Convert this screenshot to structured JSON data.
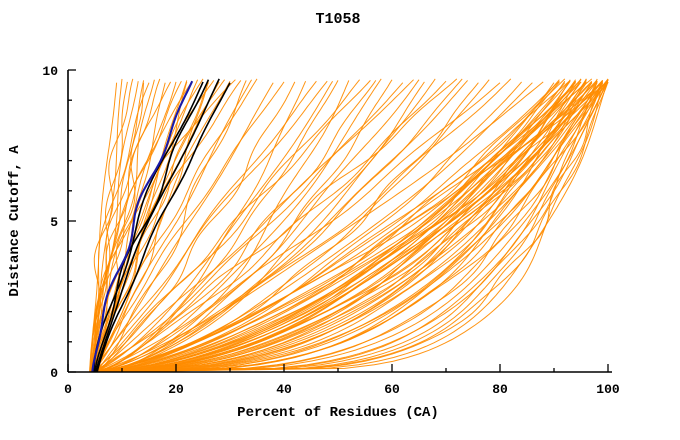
{
  "title": "T1058",
  "chart_data": {
    "type": "line",
    "title": "T1058",
    "xlabel": "Percent of Residues (CA)",
    "ylabel": "Distance Cutoff, A",
    "xlim": [
      0,
      100
    ],
    "ylim": [
      0,
      10
    ],
    "x_ticks": [
      0,
      20,
      40,
      60,
      80,
      100
    ],
    "y_ticks": [
      0,
      5,
      10
    ],
    "x_minor_step": 10,
    "y_minor_step": 1,
    "grid": false,
    "legend": "none",
    "curve_model": "x(y) = x0 + (x1 - x0) * (y/ymax)^p, y from 0 to ~9.65",
    "colors": {
      "predictions": "#ff8c00",
      "highlight_black": "#000000",
      "highlight_blue": "#1a1aa8"
    },
    "series": [
      {
        "name": "prediction-curves",
        "color": "#ff8c00",
        "stroke_width": 1,
        "params": [
          [
            4,
            9,
            1.2
          ],
          [
            4.5,
            11,
            1.1
          ],
          [
            5,
            13,
            1.3
          ],
          [
            4,
            14,
            1.0
          ],
          [
            5.5,
            16,
            1.2
          ],
          [
            4.2,
            17,
            1.4
          ],
          [
            5,
            18,
            0.9
          ],
          [
            4.8,
            20,
            1.1
          ],
          [
            4.3,
            21,
            1.5
          ],
          [
            5.2,
            22,
            1.0
          ],
          [
            4.6,
            24,
            1.2
          ],
          [
            5,
            25,
            1.6
          ],
          [
            4.4,
            26,
            1.0
          ],
          [
            5.5,
            28,
            1.3
          ],
          [
            4.1,
            30,
            1.1
          ],
          [
            5,
            32,
            1.4
          ],
          [
            4.7,
            34,
            1.0
          ],
          [
            4.9,
            12,
            2.0
          ],
          [
            4.2,
            15,
            1.8
          ],
          [
            5.1,
            19,
            2.2
          ],
          [
            4.4,
            23,
            1.9
          ],
          [
            5.3,
            27,
            1.7
          ],
          [
            4.6,
            31,
            2.1
          ],
          [
            4.2,
            10,
            0.8
          ],
          [
            5.2,
            14,
            0.7
          ],
          [
            4.8,
            22,
            0.8
          ],
          [
            4.3,
            26,
            0.75
          ],
          [
            5.6,
            33,
            0.85
          ],
          [
            4.5,
            29,
            1.5
          ],
          [
            5.4,
            35,
            1.2
          ],
          [
            4,
            38,
            0.9
          ],
          [
            5,
            42,
            0.8
          ],
          [
            4.5,
            46,
            1.0
          ],
          [
            5.5,
            50,
            0.7
          ],
          [
            4.2,
            54,
            0.9
          ],
          [
            5.1,
            58,
            0.65
          ],
          [
            4.7,
            62,
            0.85
          ],
          [
            5.3,
            66,
            0.6
          ],
          [
            4.4,
            70,
            0.8
          ],
          [
            5,
            74,
            0.7
          ],
          [
            4.8,
            78,
            0.6
          ],
          [
            5.2,
            82,
            0.75
          ],
          [
            4.3,
            86,
            0.65
          ],
          [
            4.6,
            40,
            1.1
          ],
          [
            5.4,
            48,
            1.05
          ],
          [
            4.9,
            56,
            1.0
          ],
          [
            5.0,
            64,
            0.95
          ],
          [
            4.5,
            72,
            0.9
          ],
          [
            5.2,
            80,
            0.85
          ],
          [
            4.7,
            88,
            0.8
          ],
          [
            4.2,
            44,
            0.6
          ],
          [
            5.5,
            52,
            0.55
          ],
          [
            4.8,
            60,
            0.58
          ],
          [
            5.1,
            68,
            0.62
          ],
          [
            4.4,
            76,
            0.57
          ],
          [
            5.3,
            84,
            0.6
          ],
          [
            4.6,
            49,
            0.75
          ],
          [
            5.0,
            57,
            0.72
          ],
          [
            4.9,
            65,
            0.68
          ],
          [
            5.2,
            73,
            0.66
          ],
          [
            4,
            90,
            0.45
          ],
          [
            4.5,
            91,
            0.5
          ],
          [
            5,
            92,
            0.42
          ],
          [
            5.5,
            93,
            0.55
          ],
          [
            4.2,
            94,
            0.4
          ],
          [
            4.8,
            95,
            0.5
          ],
          [
            5.2,
            96,
            0.38
          ],
          [
            4.4,
            97,
            0.52
          ],
          [
            5,
            98,
            0.44
          ],
          [
            4.6,
            99,
            0.5
          ],
          [
            5.4,
            100,
            0.4
          ],
          [
            4.1,
            92,
            0.6
          ],
          [
            4.9,
            94,
            0.58
          ],
          [
            5.3,
            96,
            0.62
          ],
          [
            4.5,
            98,
            0.56
          ],
          [
            5.1,
            100,
            0.6
          ],
          [
            4.3,
            93,
            0.35
          ],
          [
            5.5,
            95,
            0.33
          ],
          [
            4.7,
            97,
            0.36
          ],
          [
            5.2,
            99,
            0.34
          ],
          [
            4.2,
            91,
            0.65
          ],
          [
            4.8,
            93,
            0.68
          ],
          [
            5.4,
            95,
            0.64
          ],
          [
            4.4,
            97,
            0.7
          ],
          [
            5,
            99,
            0.66
          ],
          [
            4.6,
            100,
            0.72
          ],
          [
            4.3,
            94,
            0.48
          ],
          [
            5.2,
            96,
            0.46
          ],
          [
            4.8,
            98,
            0.5
          ],
          [
            4.5,
            100,
            0.47
          ],
          [
            5.6,
            92,
            0.53
          ],
          [
            4.2,
            95,
            0.55
          ],
          [
            5.0,
            97,
            0.57
          ],
          [
            4.7,
            99,
            0.53
          ],
          [
            5.3,
            91,
            0.58
          ],
          [
            4.9,
            96,
            0.3
          ],
          [
            4.4,
            98,
            0.31
          ],
          [
            5.1,
            100,
            0.32
          ],
          [
            4.6,
            94,
            0.29
          ],
          [
            5.4,
            99,
            0.28
          ],
          [
            4.35,
            100,
            0.26
          ],
          [
            4.95,
            98,
            0.27
          ],
          [
            5.25,
            97,
            0.42
          ],
          [
            4.55,
            95,
            0.44
          ],
          [
            5.05,
            93,
            0.47
          ],
          [
            4.15,
            99,
            0.41
          ],
          [
            5.45,
            100,
            0.36
          ],
          [
            4.65,
            96,
            0.39
          ],
          [
            4.85,
            100,
            0.5
          ],
          [
            5.15,
            94,
            0.52
          ],
          [
            4.5,
            98,
            0.2
          ],
          [
            5,
            99,
            0.22
          ],
          [
            4.7,
            100,
            0.18
          ],
          [
            5.2,
            100,
            0.24
          ],
          [
            4.3,
            99,
            0.16
          ],
          [
            4.9,
            100,
            0.2
          ],
          [
            5.5,
            98,
            0.23
          ],
          [
            4.6,
            99,
            0.19
          ]
        ]
      },
      {
        "name": "highlight-black-curves",
        "color": "#000000",
        "stroke_width": 1.6,
        "params": [
          [
            5,
            26,
            1.25
          ],
          [
            5.2,
            28,
            1.2
          ],
          [
            5.4,
            30,
            1.15
          ],
          [
            4.8,
            25,
            1.35
          ]
        ]
      },
      {
        "name": "highlight-blue-curve",
        "color": "#1a1aa8",
        "stroke_width": 2.1,
        "params": [
          [
            4.5,
            23,
            1.3
          ]
        ]
      }
    ]
  }
}
